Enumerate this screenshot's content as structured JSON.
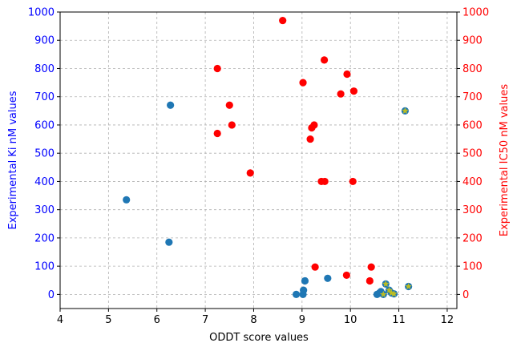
{
  "chart_data": {
    "type": "scatter",
    "title": "",
    "xlabel": "ODDT score values",
    "ylabel_left": "Experimental Ki nM values",
    "ylabel_right": "Experimental IC50 nM values",
    "xlim": [
      4.0,
      12.2
    ],
    "ylim": [
      -50,
      1000
    ],
    "xticks": [
      4,
      5,
      6,
      7,
      8,
      9,
      10,
      11,
      12
    ],
    "yticks": [
      0,
      100,
      200,
      300,
      400,
      500,
      600,
      700,
      800,
      900,
      1000
    ],
    "grid": true,
    "colors": {
      "ki_axis": "#0000ff",
      "ic50_axis": "#ff0000",
      "ki_points": "#1f77b4",
      "ic50_points": "#ff0000",
      "star_points": "#bcbd22",
      "grid": "#b0b0b0"
    },
    "series": [
      {
        "axis": "left",
        "marker": "circle",
        "color": "#1f77b4",
        "points": [
          [
            5.37,
            335
          ],
          [
            6.25,
            185
          ],
          [
            6.28,
            670
          ],
          [
            8.88,
            0
          ],
          [
            9.02,
            0
          ],
          [
            9.03,
            15
          ],
          [
            9.06,
            48
          ],
          [
            9.53,
            57
          ],
          [
            10.55,
            0
          ],
          [
            10.6,
            5
          ],
          [
            10.63,
            10
          ],
          [
            10.68,
            0
          ],
          [
            10.73,
            37
          ],
          [
            10.8,
            15
          ],
          [
            10.85,
            5
          ],
          [
            10.9,
            2
          ],
          [
            11.13,
            650
          ],
          [
            11.2,
            28
          ]
        ]
      },
      {
        "axis": "right",
        "marker": "circle",
        "color": "#ff0000",
        "points": [
          [
            8.6,
            970
          ],
          [
            7.25,
            800
          ],
          [
            9.46,
            830
          ],
          [
            9.93,
            780
          ],
          [
            9.02,
            750
          ],
          [
            9.8,
            710
          ],
          [
            10.07,
            720
          ],
          [
            7.5,
            670
          ],
          [
            7.25,
            570
          ],
          [
            7.55,
            600
          ],
          [
            9.2,
            590
          ],
          [
            9.25,
            600
          ],
          [
            9.17,
            550
          ],
          [
            7.93,
            430
          ],
          [
            9.4,
            400
          ],
          [
            9.47,
            400
          ],
          [
            10.05,
            400
          ],
          [
            9.27,
            97
          ],
          [
            9.92,
            68
          ],
          [
            10.43,
            97
          ],
          [
            10.4,
            48
          ]
        ]
      },
      {
        "axis": "left",
        "marker": "star",
        "color": "#bcbd22",
        "points": [
          [
            11.13,
            650
          ],
          [
            11.2,
            28
          ],
          [
            10.73,
            37
          ],
          [
            10.8,
            15
          ],
          [
            10.85,
            5
          ],
          [
            10.9,
            2
          ],
          [
            10.68,
            0
          ]
        ]
      }
    ]
  }
}
